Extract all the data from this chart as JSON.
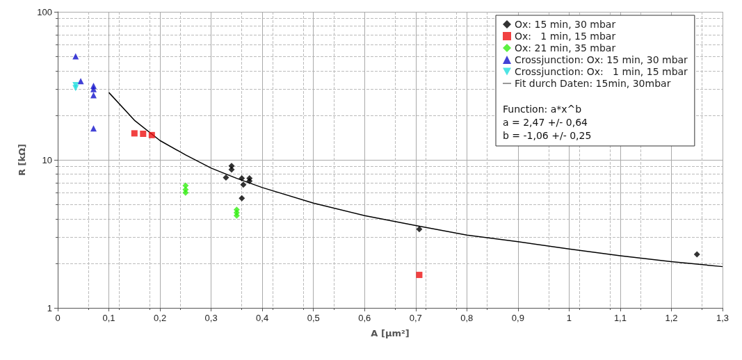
{
  "chart_data": {
    "type": "scatter",
    "xlabel": "A [µm²]",
    "ylabel": "R [kΩ]",
    "log": "y",
    "grid": true,
    "legend": "top right",
    "xlim": [
      0,
      1.3
    ],
    "ylim": [
      1,
      100
    ],
    "xticks": [
      0,
      {
        "value": 0.1,
        "label": "0,1"
      },
      {
        "value": 0.2,
        "label": "0,2"
      },
      {
        "value": 0.3,
        "label": "0,3"
      },
      {
        "value": 0.4,
        "label": "0,4"
      },
      {
        "value": 0.5,
        "label": "0,5"
      },
      {
        "value": 0.6,
        "label": "0,6"
      },
      {
        "value": 0.7,
        "label": "0,7"
      },
      {
        "value": 0.8,
        "label": "0,8"
      },
      {
        "value": 0.9,
        "label": "0,9"
      },
      1,
      {
        "value": 1.1,
        "label": "1,1"
      },
      {
        "value": 1.2,
        "label": "1,2"
      },
      {
        "value": 1.3,
        "label": "1,3"
      }
    ],
    "yticks": [
      1,
      10,
      100
    ],
    "series": [
      {
        "name": "Ox: 15 min, 30 mbar",
        "color": "#000000",
        "marker": "diamond",
        "x": [
          0.34,
          0.34,
          0.329,
          0.36,
          0.375,
          0.375,
          0.363,
          0.36,
          0.707,
          1.25
        ],
        "values": [
          8.6,
          9.1,
          7.6,
          7.5,
          7.5,
          7.2,
          6.8,
          5.5,
          3.4,
          2.3
        ]
      },
      {
        "name": "Ox:   1 min, 15 mbar",
        "color": "#ee1111",
        "marker": "square",
        "x": [
          0.15,
          0.167,
          0.184,
          0.707
        ],
        "values": [
          15.1,
          15,
          14.7,
          1.67
        ]
      },
      {
        "name": "Ox: 21 min, 35 mbar",
        "color": "#33ee11",
        "marker": "diamond",
        "x": [
          0.25,
          0.25,
          0.25,
          0.35,
          0.35,
          0.35
        ],
        "values": [
          6.7,
          6.3,
          6.0,
          4.6,
          4.4,
          4.2
        ]
      },
      {
        "name": "Crossjunction: Ox: 15 min, 30 mbar",
        "color": "#1111cc",
        "marker": "triangle",
        "x": [
          0.035,
          0.045,
          0.07,
          0.07,
          0.07,
          0.07
        ],
        "values": [
          50,
          34,
          31.6,
          30,
          27.3,
          16.3
        ]
      },
      {
        "name": "Crossjunction: Ox:   1 min, 15 mbar",
        "color": "#22dddd",
        "marker": "triangle_down",
        "x": [
          0.035,
          0.035
        ],
        "values": [
          32,
          30.5
        ]
      },
      {
        "name": "Fit durch Daten: 15min, 30mbar",
        "type": "line",
        "color": "#000000",
        "marker": "none",
        "line_style": "solid",
        "x": [
          0.1,
          0.15,
          0.2,
          0.25,
          0.3,
          0.35,
          0.4,
          0.5,
          0.6,
          0.7,
          0.8,
          0.9,
          1.0,
          1.1,
          1.2,
          1.3
        ],
        "values": [
          28.5,
          18.5,
          13.5,
          10.8,
          8.8,
          7.5,
          6.5,
          5.1,
          4.2,
          3.6,
          3.1,
          2.8,
          2.5,
          2.25,
          2.05,
          1.9
        ]
      }
    ],
    "annotations": [
      "Function: a*x^b",
      "a = 2,47 +/- 0,64",
      "b = -1,06 +/- 0,25"
    ]
  }
}
